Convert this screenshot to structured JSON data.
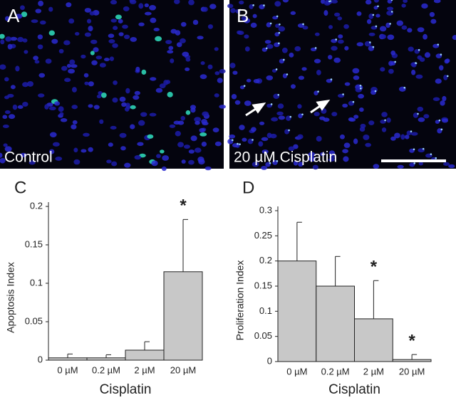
{
  "image_panels": [
    {
      "label": "A",
      "caption": "Control"
    },
    {
      "label": "B",
      "caption": "20 µM Cisplatin"
    }
  ],
  "chart_data": [
    {
      "type": "bar",
      "panel": "C",
      "ylabel": "Apoptosis Index",
      "xlabel": "Cisplatin",
      "categories": [
        "0 µM",
        "0.2 µM",
        "2 µM",
        "20 µM"
      ],
      "values": [
        0.003,
        0.003,
        0.013,
        0.115
      ],
      "errors": [
        0.005,
        0.004,
        0.011,
        0.068
      ],
      "markers": [
        null,
        null,
        null,
        "*"
      ],
      "color": "#c8c8c8",
      "ylim": [
        0,
        0.2
      ],
      "yticks": [
        0,
        0.05,
        0.1,
        0.15,
        0.2
      ]
    },
    {
      "type": "bar",
      "panel": "D",
      "ylabel": "Proliferation Index",
      "xlabel": "Cisplatin",
      "categories": [
        "0 µM",
        "0.2 µM",
        "2 µM",
        "20 µM"
      ],
      "values": [
        0.2,
        0.15,
        0.085,
        0.004
      ],
      "errors": [
        0.077,
        0.059,
        0.076,
        0.01
      ],
      "markers": [
        null,
        null,
        "*",
        "*"
      ],
      "color": "#c8c8c8",
      "ylim": [
        0,
        0.3
      ],
      "yticks": [
        0,
        0.05,
        0.1,
        0.15,
        0.2,
        0.25,
        0.3
      ]
    }
  ]
}
